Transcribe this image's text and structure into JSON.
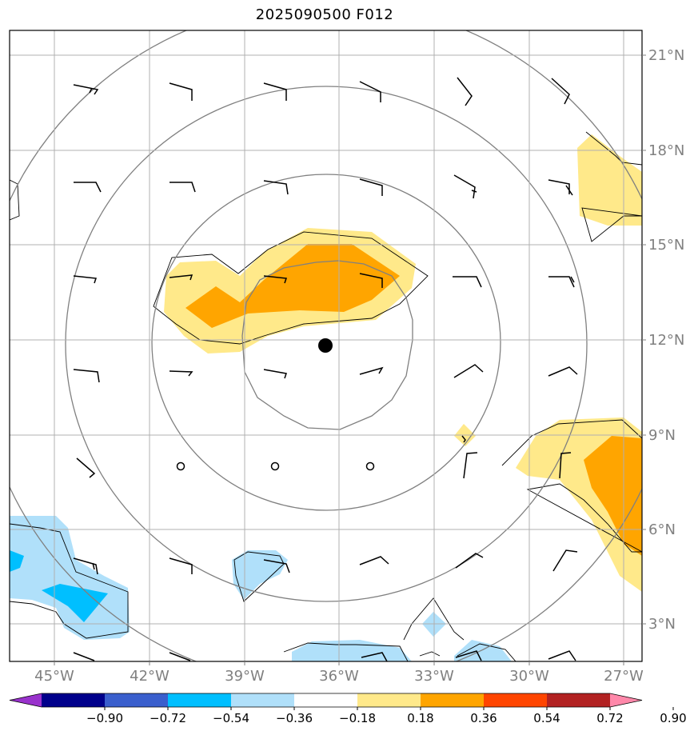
{
  "title": "2025090500 F012",
  "map": {
    "lon_labels": [
      "45°W",
      "42°W",
      "39°W",
      "36°W",
      "33°W",
      "30°W",
      "27°W"
    ],
    "lat_labels": [
      "21°N",
      "18°N",
      "15°N",
      "12°N",
      "9°N",
      "6°N",
      "3°N"
    ],
    "center_marker": "storm-center-dot",
    "range_rings": 4
  },
  "colorbar": {
    "labels": [
      "−0.90",
      "−0.72",
      "−0.54",
      "−0.36",
      "−0.18",
      "0.18",
      "0.36",
      "0.54",
      "0.72",
      "0.90"
    ],
    "colors": [
      "#9932cc",
      "#00008b",
      "#3a5fcd",
      "#00bfff",
      "#b0e0fa",
      "#ffffff",
      "#ffe98a",
      "#ffa500",
      "#ff4500",
      "#b22222",
      "#ff88aa"
    ]
  }
}
